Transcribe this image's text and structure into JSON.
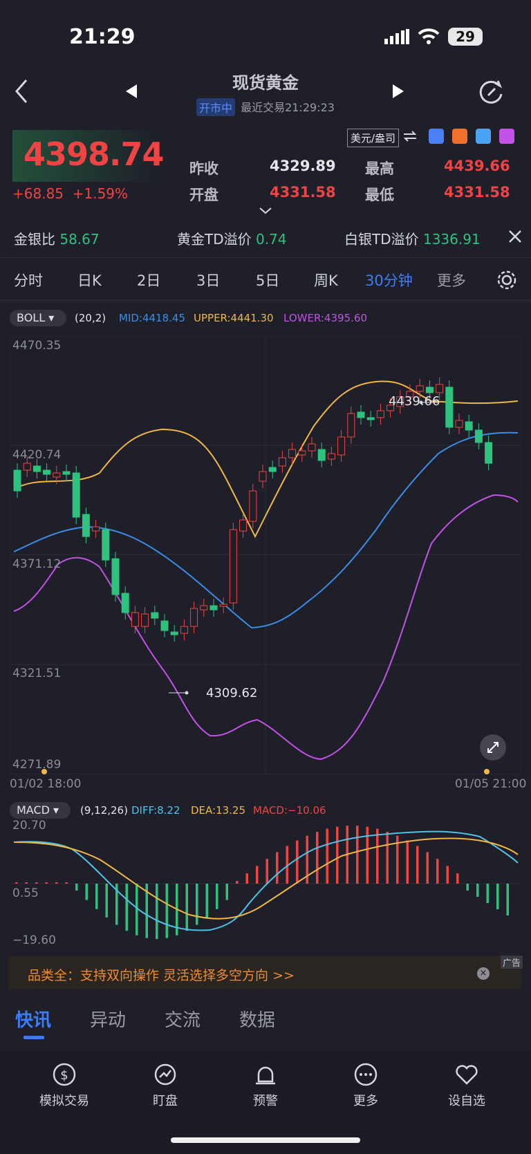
{
  "status_bar": {
    "time": "21:29",
    "battery": "29"
  },
  "header": {
    "title": "现货黄金",
    "market_status": "开市中",
    "last_trade": "最近交易21:29:23"
  },
  "quote": {
    "price": "4398.74",
    "change": "+68.85",
    "change_pct": "+1.59%",
    "prev_close_label": "昨收",
    "prev_close": "4329.89",
    "high_label": "最高",
    "high": "4439.66",
    "open_label": "开盘",
    "open": "4331.58",
    "low_label": "最低",
    "low": "4331.58",
    "unit": "美元/盎司"
  },
  "ratios": [
    {
      "label": "金银比",
      "value": "58.67"
    },
    {
      "label": "黄金TD溢价",
      "value": "0.74"
    },
    {
      "label": "白银TD溢价",
      "value": "1336.91"
    }
  ],
  "period_tabs": [
    "分时",
    "日K",
    "2日",
    "3日",
    "5日",
    "周K",
    "30分钟",
    "更多"
  ],
  "active_tab": "30分钟",
  "boll": {
    "name": "BOLL",
    "params": "(20,2)",
    "mid": "MID:4418.45",
    "upper": "UPPER:4441.30",
    "lower": "LOWER:4395.60"
  },
  "price_axis": [
    "4470.35",
    "4420.74",
    "4371.12",
    "4321.51",
    "4271.89"
  ],
  "annotations": {
    "high": "4439.66",
    "low": "4309.62"
  },
  "time_axis": {
    "start": "01/02 18:00",
    "end": "01/05 21:00"
  },
  "macd": {
    "name": "MACD",
    "params": "(9,12,26)",
    "diff": "DIFF:8.22",
    "dea": "DEA:13.25",
    "macd": "MACD:−10.06",
    "axis": [
      "20.70",
      "0.55",
      "−19.60"
    ]
  },
  "ad": {
    "text": "品类全：支持双向操作 灵活选择多空方向 >>",
    "tag": "广告"
  },
  "news_tabs": [
    "快讯",
    "异动",
    "交流",
    "数据"
  ],
  "bottom_nav": [
    "模拟交易",
    "盯盘",
    "预警",
    "更多",
    "设自选"
  ],
  "colors": {
    "up": "#f04444",
    "down": "#2ec27e",
    "accent": "#3d7cf5",
    "mid": "#3a8ee8",
    "upper": "#f2b744",
    "lower": "#c451e8"
  }
}
